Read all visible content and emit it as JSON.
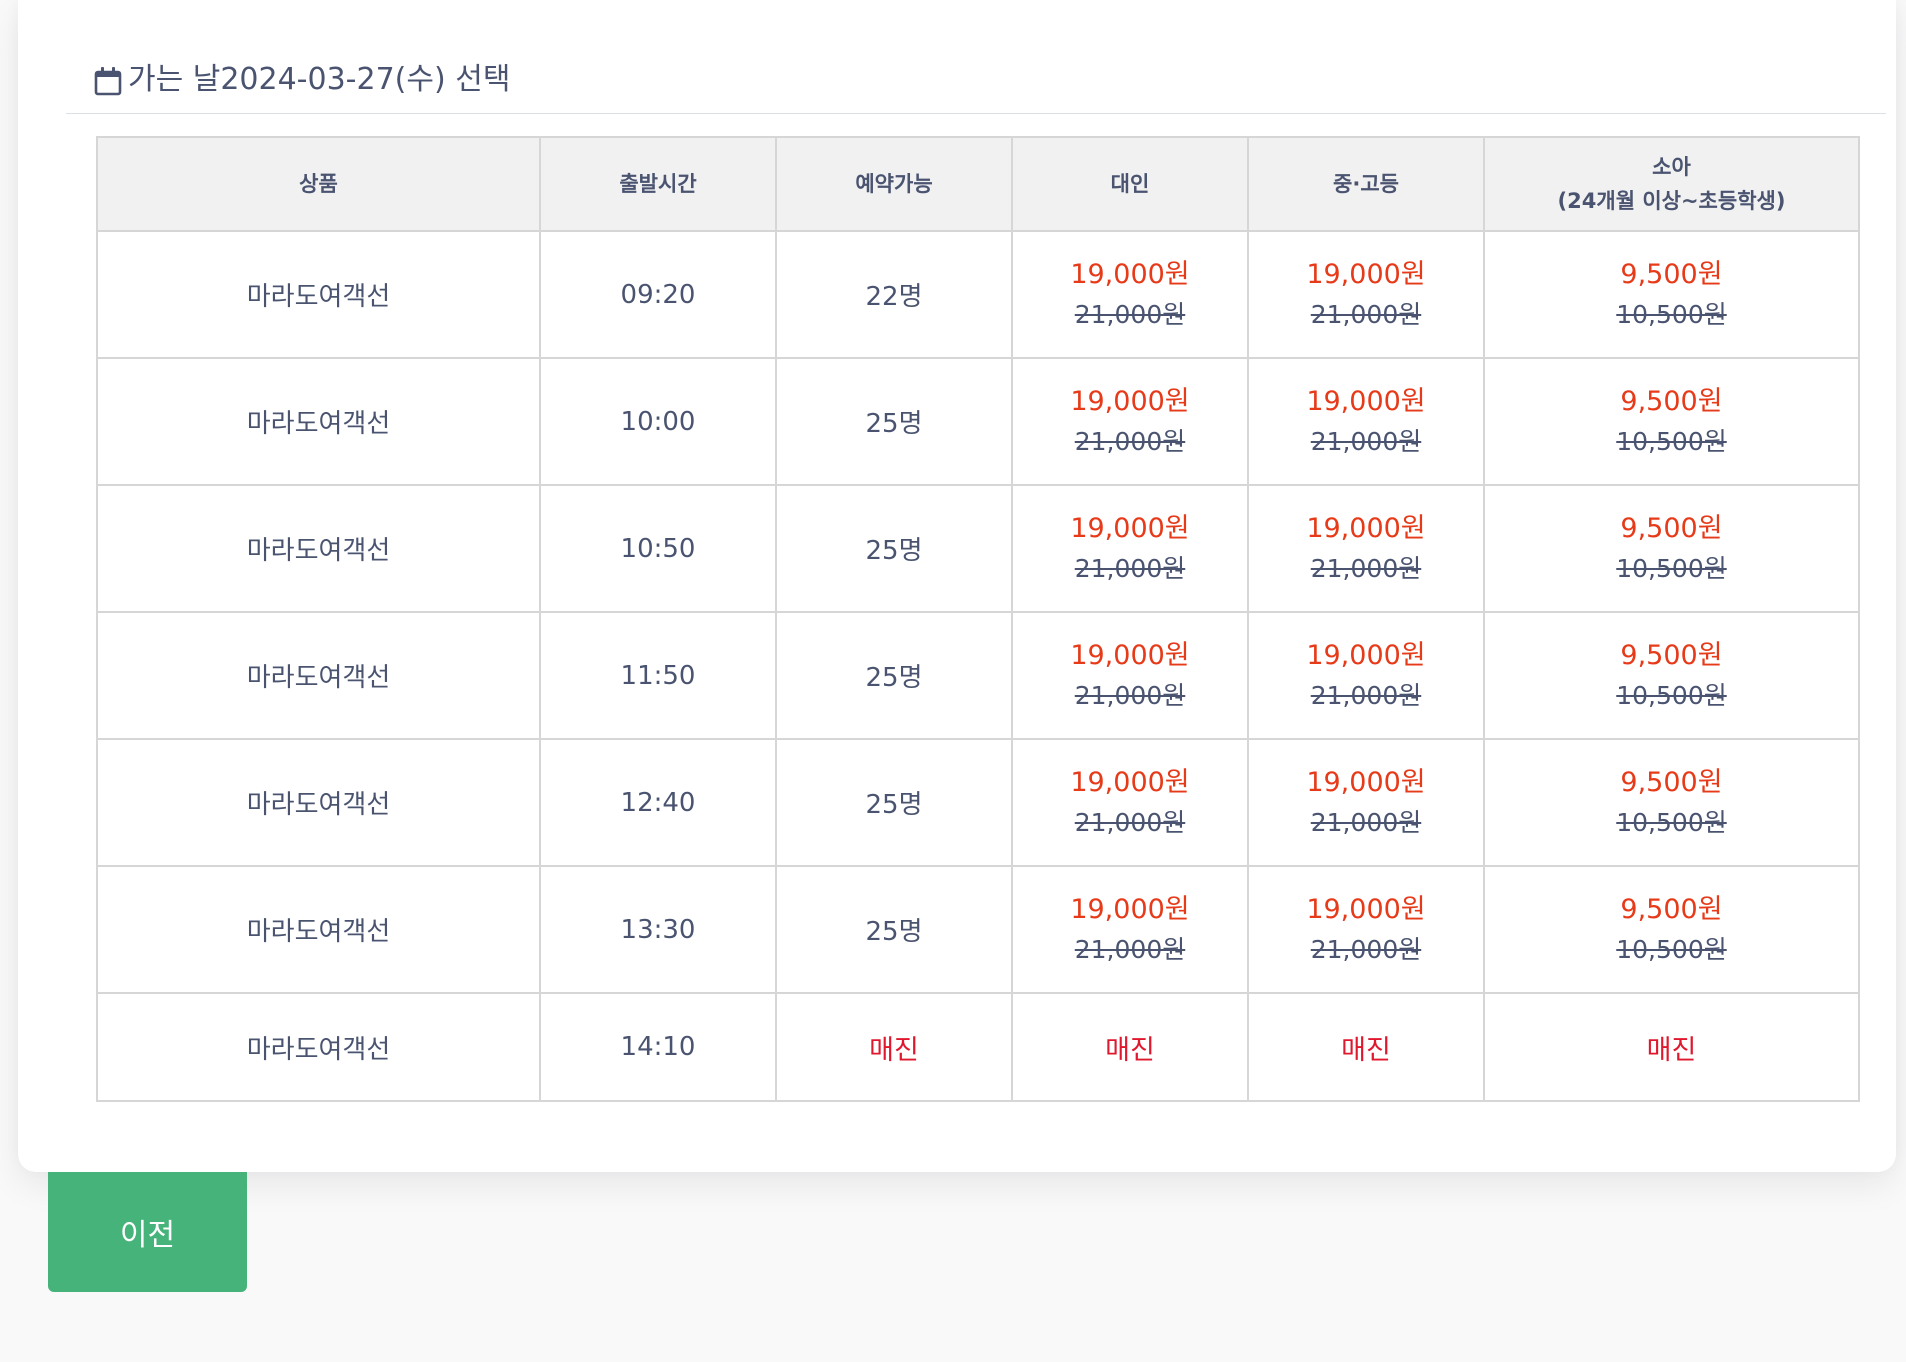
{
  "header": {
    "title": "가는 날2024-03-27(수) 선택",
    "icon": "calendar-icon"
  },
  "table": {
    "columns": [
      {
        "label": "상품",
        "sub": ""
      },
      {
        "label": "출발시간",
        "sub": ""
      },
      {
        "label": "예약가능",
        "sub": ""
      },
      {
        "label": "대인",
        "sub": ""
      },
      {
        "label": "중·고등",
        "sub": ""
      },
      {
        "label": "소아",
        "sub": "(24개월 이상~초등학생)"
      }
    ],
    "rows": [
      {
        "product": "마라도여객선",
        "time": "09:20",
        "available": "22명",
        "adult_sale": "19,000원",
        "adult_orig": "21,000원",
        "youth_sale": "19,000원",
        "youth_orig": "21,000원",
        "child_sale": "9,500원",
        "child_orig": "10,500원"
      },
      {
        "product": "마라도여객선",
        "time": "10:00",
        "available": "25명",
        "adult_sale": "19,000원",
        "adult_orig": "21,000원",
        "youth_sale": "19,000원",
        "youth_orig": "21,000원",
        "child_sale": "9,500원",
        "child_orig": "10,500원"
      },
      {
        "product": "마라도여객선",
        "time": "10:50",
        "available": "25명",
        "adult_sale": "19,000원",
        "adult_orig": "21,000원",
        "youth_sale": "19,000원",
        "youth_orig": "21,000원",
        "child_sale": "9,500원",
        "child_orig": "10,500원"
      },
      {
        "product": "마라도여객선",
        "time": "11:50",
        "available": "25명",
        "adult_sale": "19,000원",
        "adult_orig": "21,000원",
        "youth_sale": "19,000원",
        "youth_orig": "21,000원",
        "child_sale": "9,500원",
        "child_orig": "10,500원"
      },
      {
        "product": "마라도여객선",
        "time": "12:40",
        "available": "25명",
        "adult_sale": "19,000원",
        "adult_orig": "21,000원",
        "youth_sale": "19,000원",
        "youth_orig": "21,000원",
        "child_sale": "9,500원",
        "child_orig": "10,500원"
      },
      {
        "product": "마라도여객선",
        "time": "13:30",
        "available": "25명",
        "adult_sale": "19,000원",
        "adult_orig": "21,000원",
        "youth_sale": "19,000원",
        "youth_orig": "21,000원",
        "child_sale": "9,500원",
        "child_orig": "10,500원"
      }
    ],
    "soldout_row": {
      "product": "마라도여객선",
      "time": "14:10",
      "status": "매진"
    }
  },
  "buttons": {
    "prev_label": "이전"
  },
  "colors": {
    "sale_price": "#e63a19",
    "soldout": "#e0182e",
    "button": "#45b37a",
    "text": "#4a5470"
  }
}
